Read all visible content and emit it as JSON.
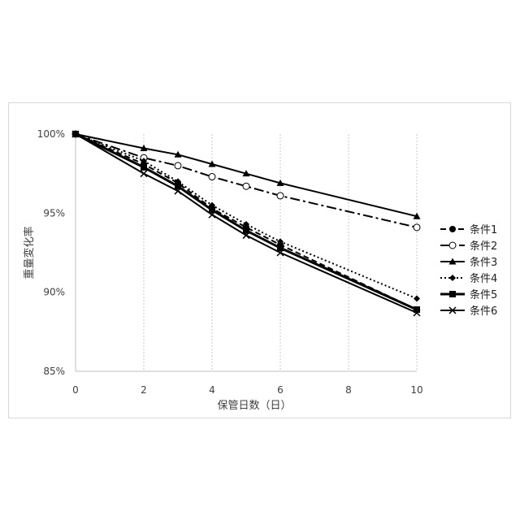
{
  "chart_data": {
    "type": "line",
    "xlabel": "保管日数（日）",
    "ylabel": "重量変化率",
    "xlim": [
      0,
      10
    ],
    "ylim": [
      85,
      100
    ],
    "x_ticks": [
      "0",
      "2",
      "4",
      "6",
      "8",
      "10"
    ],
    "y_ticks": [
      "85%",
      "90%",
      "95%",
      "100%"
    ],
    "grid": "vertical dotted",
    "legend_position": "right",
    "series": [
      {
        "name": "条件1",
        "marker": "circle-filled",
        "dash": "dash",
        "points": [
          [
            0,
            100
          ],
          [
            2,
            98.1
          ],
          [
            3,
            96.9
          ],
          [
            4,
            95.3
          ],
          [
            5,
            94.1
          ],
          [
            6,
            93.0
          ],
          [
            10,
            88.9
          ]
        ]
      },
      {
        "name": "条件2",
        "marker": "circle-open",
        "dash": "dashdot",
        "points": [
          [
            0,
            100
          ],
          [
            2,
            98.5
          ],
          [
            3,
            98.0
          ],
          [
            4,
            97.3
          ],
          [
            5,
            96.7
          ],
          [
            6,
            96.1
          ],
          [
            10,
            94.1
          ]
        ]
      },
      {
        "name": "条件3",
        "marker": "triangle",
        "dash": "solid",
        "points": [
          [
            0,
            100
          ],
          [
            2,
            99.1
          ],
          [
            3,
            98.7
          ],
          [
            4,
            98.1
          ],
          [
            5,
            97.5
          ],
          [
            6,
            96.9
          ],
          [
            10,
            94.8
          ]
        ]
      },
      {
        "name": "条件4",
        "marker": "diamond",
        "dash": "dot",
        "points": [
          [
            0,
            100
          ],
          [
            2,
            98.3
          ],
          [
            3,
            97.0
          ],
          [
            4,
            95.5
          ],
          [
            5,
            94.3
          ],
          [
            6,
            93.2
          ],
          [
            10,
            89.6
          ]
        ]
      },
      {
        "name": "条件5",
        "marker": "square",
        "dash": "solid-thick",
        "points": [
          [
            0,
            100
          ],
          [
            2,
            97.9
          ],
          [
            3,
            96.7
          ],
          [
            4,
            95.2
          ],
          [
            5,
            93.9
          ],
          [
            6,
            92.8
          ],
          [
            10,
            88.9
          ]
        ]
      },
      {
        "name": "条件6",
        "marker": "x",
        "dash": "solid",
        "points": [
          [
            0,
            100
          ],
          [
            2,
            97.5
          ],
          [
            3,
            96.4
          ],
          [
            4,
            94.9
          ],
          [
            5,
            93.6
          ],
          [
            6,
            92.5
          ],
          [
            10,
            88.7
          ]
        ]
      }
    ]
  }
}
